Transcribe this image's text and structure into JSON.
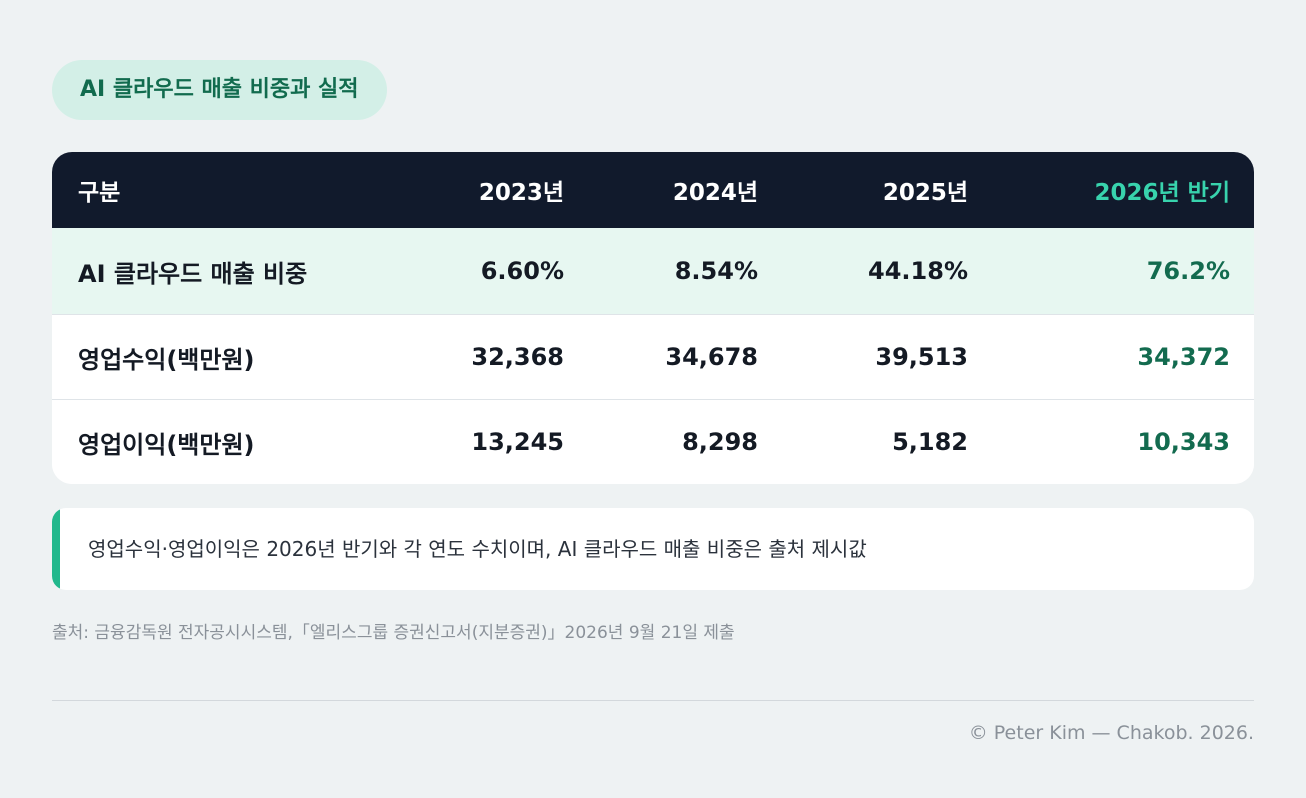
{
  "title": "AI 클라우드 매출 비중과 실적",
  "table": {
    "headers": [
      "구분",
      "2023년",
      "2024년",
      "2025년",
      "2026년 반기"
    ],
    "rows": [
      {
        "label": "AI 클라우드 매출 비중",
        "values": [
          "6.60%",
          "8.54%",
          "44.18%",
          "76.2%"
        ]
      },
      {
        "label": "영업수익(백만원)",
        "values": [
          "32,368",
          "34,678",
          "39,513",
          "34,372"
        ]
      },
      {
        "label": "영업이익(백만원)",
        "values": [
          "13,245",
          "8,298",
          "5,182",
          "10,343"
        ]
      }
    ]
  },
  "note": "영업수익·영업이익은 2026년 반기와 각 연도 수치이며, AI 클라우드 매출 비중은 출처 제시값",
  "source": "출처: 금융감독원 전자공시시스템,「엘리스그룹 증권신고서(지분증권)」2026년 9월 21일 제출",
  "credit": "© Peter Kim — Chakob. 2026.",
  "colors": {
    "background": "#eef2f3",
    "header_bg": "#111a2c",
    "accent_green": "#136b4f",
    "accent_teal": "#38d3ad",
    "highlight_row": "#e7f7f1",
    "note_bar": "#22b88c"
  }
}
